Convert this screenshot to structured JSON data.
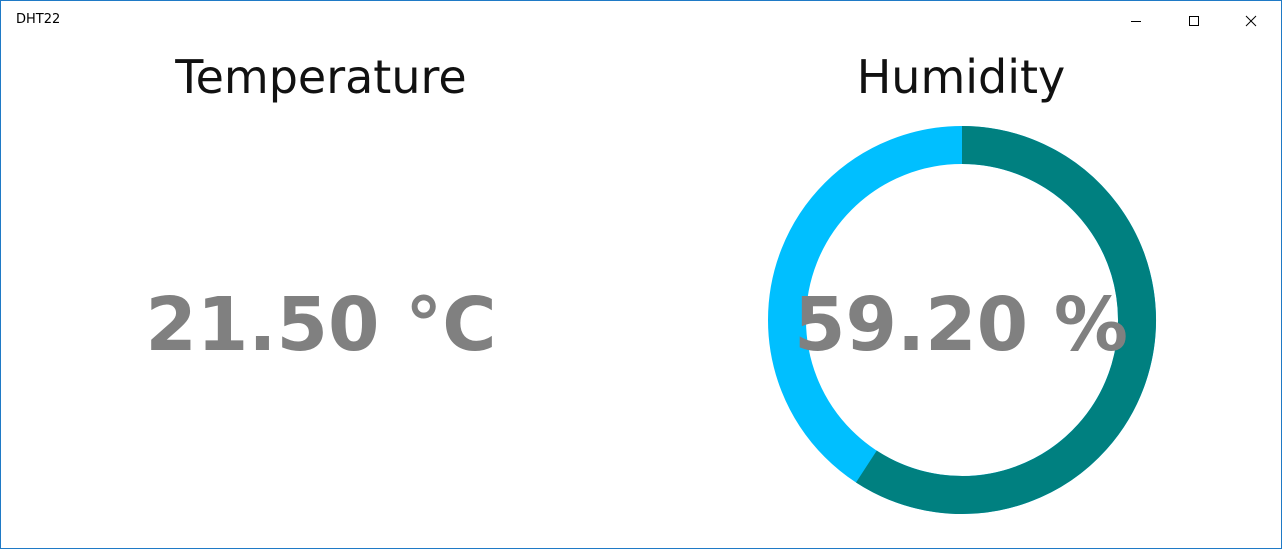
{
  "window": {
    "title": "DHT22",
    "border_color": "#1f7ac6"
  },
  "caption_buttons": {
    "minimize_icon": "minimize-icon",
    "maximize_icon": "maximize-icon",
    "close_icon": "close-icon"
  },
  "temperature": {
    "title": "Temperature",
    "value": "21.50 °C"
  },
  "humidity": {
    "title": "Humidity",
    "value": "59.20 %",
    "percent": 59.2,
    "fill_color": "#008080",
    "remainder_color": "#00bfff"
  },
  "value_color": "#808080"
}
